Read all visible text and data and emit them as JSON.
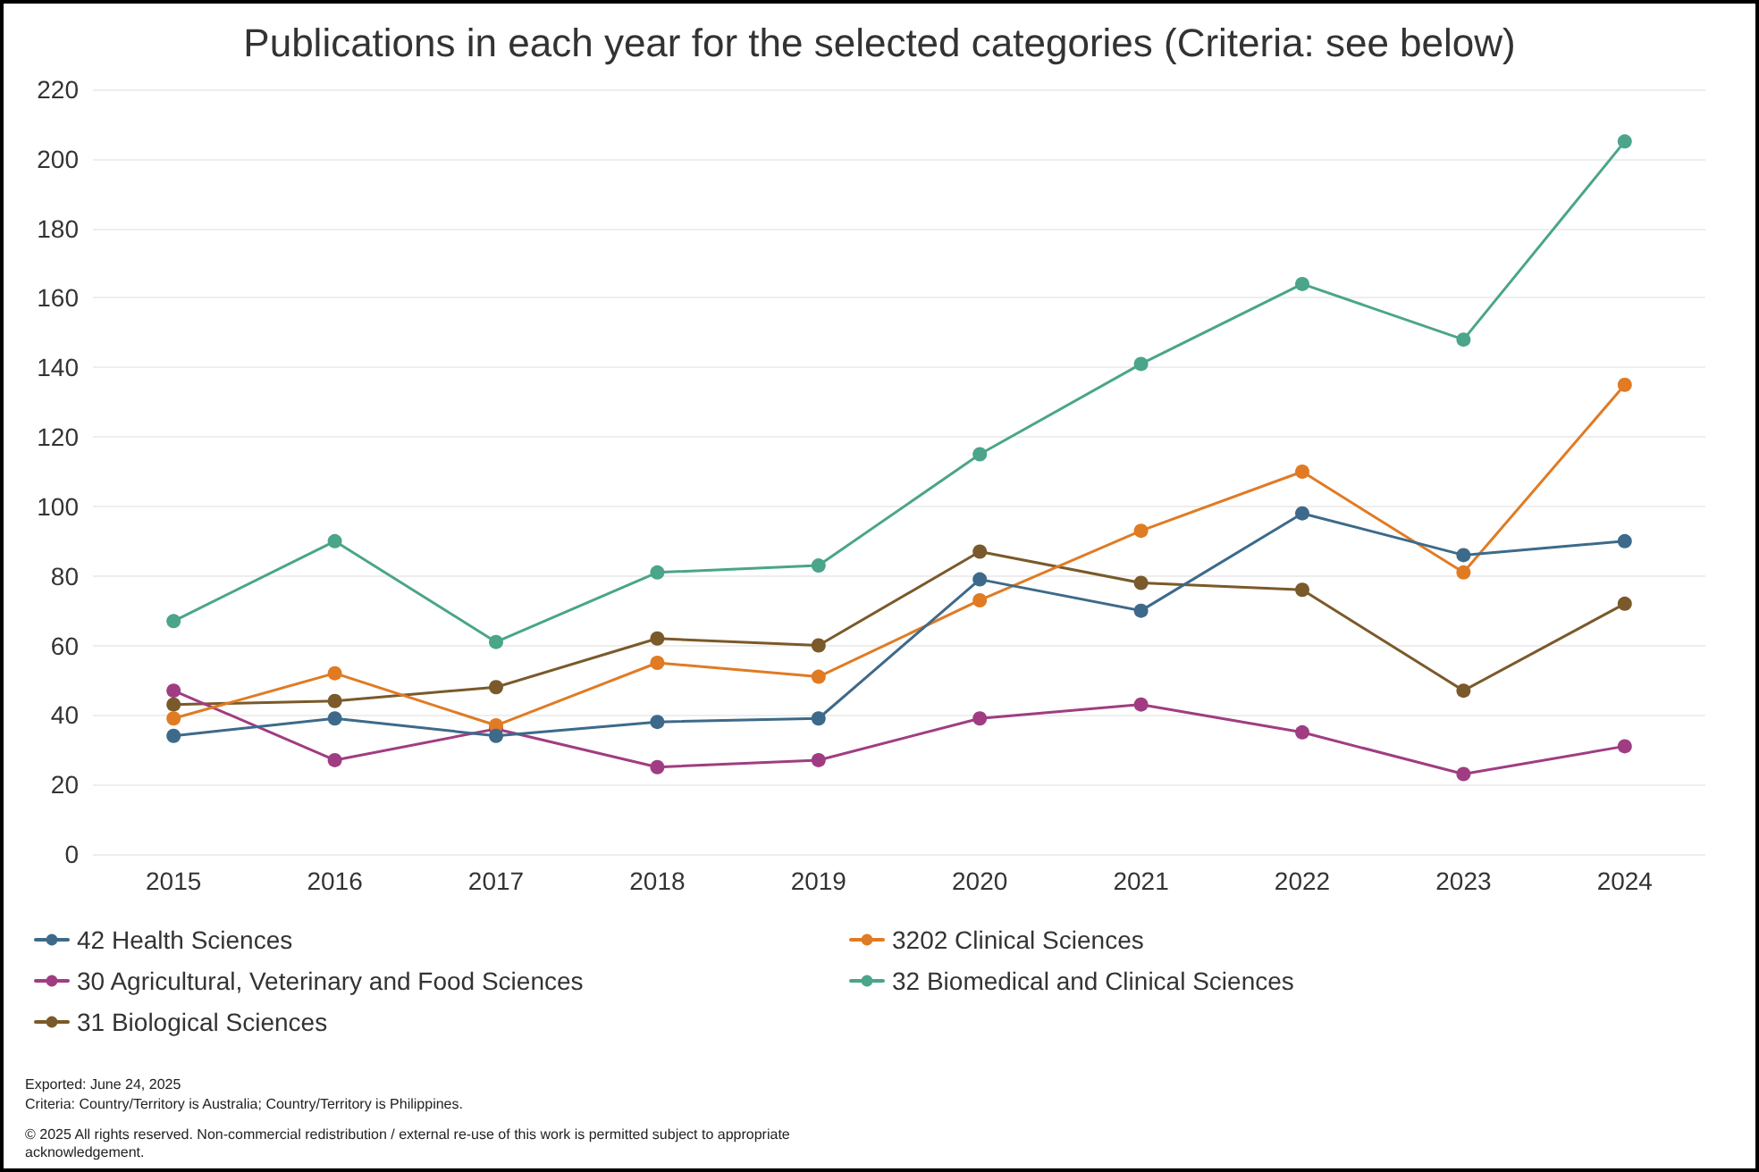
{
  "chart_data": {
    "type": "line",
    "title": "Publications in each year for the selected categories (Criteria: see below)",
    "categories": [
      "2015",
      "2016",
      "2017",
      "2018",
      "2019",
      "2020",
      "2021",
      "2022",
      "2023",
      "2024"
    ],
    "series": [
      {
        "name": "42 Health Sciences",
        "color": "#3d6a8a",
        "values": [
          34,
          39,
          34,
          38,
          39,
          79,
          70,
          98,
          86,
          90
        ]
      },
      {
        "name": "3202 Clinical Sciences",
        "color": "#e07b24",
        "values": [
          39,
          52,
          37,
          55,
          51,
          73,
          93,
          110,
          81,
          135
        ]
      },
      {
        "name": "30 Agricultural, Veterinary and Food Sciences",
        "color": "#a03d82",
        "values": [
          47,
          27,
          36,
          25,
          27,
          39,
          43,
          35,
          23,
          31
        ]
      },
      {
        "name": "32 Biomedical and Clinical Sciences",
        "color": "#4aa58a",
        "values": [
          67,
          90,
          61,
          81,
          83,
          115,
          141,
          164,
          148,
          205
        ]
      },
      {
        "name": "31 Biological Sciences",
        "color": "#7a5a2a",
        "values": [
          43,
          44,
          48,
          62,
          60,
          87,
          78,
          76,
          47,
          72
        ]
      }
    ],
    "ylim": [
      0,
      220
    ],
    "yticks": [
      0,
      20,
      40,
      60,
      80,
      100,
      120,
      140,
      160,
      180,
      200,
      220
    ],
    "grid": "y",
    "legend": "bottom",
    "marker": "circle",
    "line_style": "solid",
    "annotations": [
      "Exported: June 24, 2025",
      "Criteria: Country/Territory is Australia; Country/Territory is Philippines.",
      "© 2025 All rights reserved. Non-commercial redistribution / external re-use of this work is permitted subject to appropriate acknowledgement."
    ]
  }
}
